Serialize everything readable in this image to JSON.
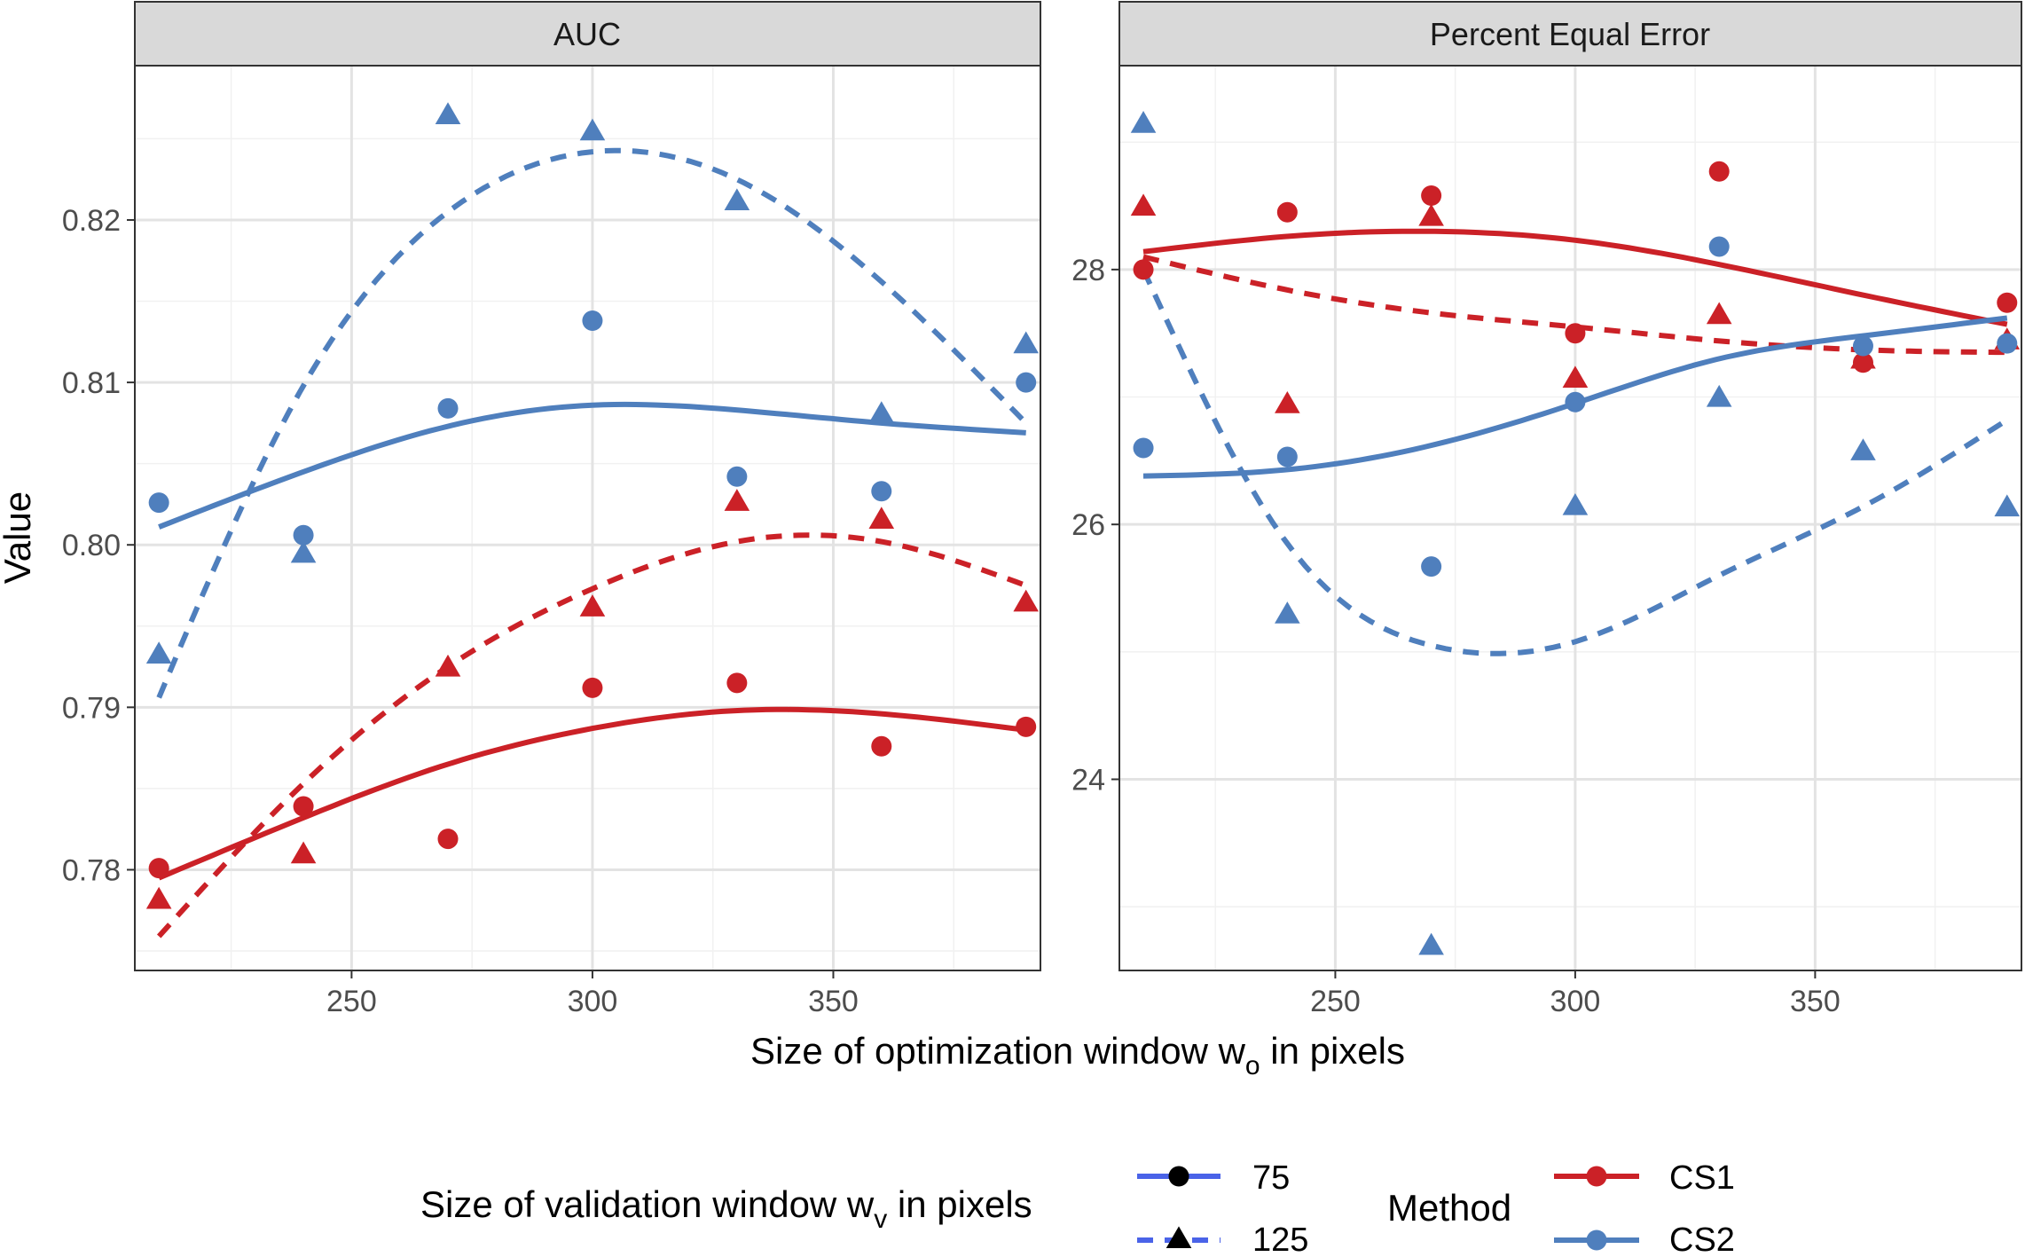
{
  "colors": {
    "CS1": "#CB2127",
    "CS2": "#4F7FBD",
    "legend_line_75": "#4A63E8",
    "strip_bg": "#D9D9D9",
    "grid_major": "#E3E3E3",
    "grid_minor": "#F1F1F1",
    "frame": "#333333",
    "text": "#4D4D4D"
  },
  "ylabel": "Value",
  "xlabel_main": "Size of optimization window  w",
  "xlabel_sub": "o",
  "xlabel_tail": "  in pixels",
  "legend": {
    "wv_title_main": "Size of validation window  w",
    "wv_title_sub": "v",
    "wv_title_tail": "  in pixels",
    "wv_items": [
      {
        "label": "75",
        "shape": "circle",
        "linetype": "solid"
      },
      {
        "label": "125",
        "shape": "triangle",
        "linetype": "dashed"
      }
    ],
    "method_title": "Method",
    "method_items": [
      {
        "label": "CS1",
        "color": "#CB2127"
      },
      {
        "label": "CS2",
        "color": "#4F7FBD"
      }
    ]
  },
  "chart_data": [
    {
      "type": "scatter",
      "title": "AUC",
      "xlim": [
        205,
        393
      ],
      "ylim": [
        0.7738,
        0.8295
      ],
      "xticks": [
        250,
        300,
        350
      ],
      "xticklabels": [
        "250",
        "300",
        "350"
      ],
      "yticks": [
        0.78,
        0.79,
        0.8,
        0.81,
        0.82
      ],
      "yticklabels": [
        "0.78",
        "0.79",
        "0.80",
        "0.81",
        "0.82"
      ],
      "xminor": [
        225,
        275,
        325,
        375
      ],
      "yminor": [
        0.775,
        0.785,
        0.795,
        0.805,
        0.815,
        0.825
      ],
      "points": [
        {
          "method": "CS1",
          "wv": "75",
          "x": [
            210,
            240,
            270,
            300,
            330,
            360,
            390
          ],
          "y": [
            0.7801,
            0.7839,
            0.7819,
            0.7912,
            0.7915,
            0.7876,
            0.7888
          ]
        },
        {
          "method": "CS1",
          "wv": "125",
          "x": [
            210,
            240,
            270,
            300,
            330,
            360,
            390
          ],
          "y": [
            0.7782,
            0.781,
            0.7925,
            0.7962,
            0.8027,
            0.8016,
            0.7965
          ]
        },
        {
          "method": "CS2",
          "wv": "75",
          "x": [
            210,
            240,
            270,
            300,
            330,
            360,
            390
          ],
          "y": [
            0.8026,
            0.8006,
            0.8084,
            0.8138,
            0.8042,
            0.8033,
            0.81
          ]
        },
        {
          "method": "CS2",
          "wv": "125",
          "x": [
            210,
            240,
            270,
            300,
            330,
            360,
            390
          ],
          "y": [
            0.7933,
            0.7995,
            0.8265,
            0.8255,
            0.8212,
            0.8081,
            0.8124
          ]
        }
      ],
      "curves": [
        {
          "method": "CS1",
          "wv": "75",
          "x": [
            210,
            240,
            270,
            300,
            330,
            360,
            390
          ],
          "y": [
            0.7795,
            0.7832,
            0.7865,
            0.7887,
            0.7898,
            0.7896,
            0.7886
          ]
        },
        {
          "method": "CS1",
          "wv": "125",
          "x": [
            210,
            240,
            270,
            300,
            330,
            360,
            390
          ],
          "y": [
            0.7759,
            0.7853,
            0.7925,
            0.7973,
            0.8002,
            0.8002,
            0.7975
          ]
        },
        {
          "method": "CS2",
          "wv": "75",
          "x": [
            210,
            240,
            270,
            300,
            330,
            360,
            390
          ],
          "y": [
            0.8011,
            0.8045,
            0.8073,
            0.8086,
            0.8083,
            0.8075,
            0.8069
          ]
        },
        {
          "method": "CS2",
          "wv": "125",
          "x": [
            210,
            240,
            270,
            300,
            330,
            360,
            390
          ],
          "y": [
            0.7906,
            0.8098,
            0.8205,
            0.8242,
            0.8225,
            0.8162,
            0.8075
          ]
        }
      ]
    },
    {
      "type": "scatter",
      "title": "Percent Equal Error",
      "xlim": [
        205,
        393
      ],
      "ylim": [
        22.5,
        29.6
      ],
      "xticks": [
        250,
        300,
        350
      ],
      "xticklabels": [
        "250",
        "300",
        "350"
      ],
      "yticks": [
        24,
        26,
        28
      ],
      "yticklabels": [
        "24",
        "26",
        "28"
      ],
      "xminor": [
        225,
        275,
        325,
        375
      ],
      "yminor": [
        23,
        25,
        27,
        29
      ],
      "points": [
        {
          "method": "CS1",
          "wv": "75",
          "x": [
            210,
            240,
            270,
            300,
            330,
            360,
            390
          ],
          "y": [
            28.0,
            28.45,
            28.58,
            27.5,
            28.77,
            27.27,
            27.74
          ]
        },
        {
          "method": "CS1",
          "wv": "125",
          "x": [
            210,
            240,
            270,
            300,
            330,
            360,
            390
          ],
          "y": [
            28.5,
            26.95,
            28.42,
            27.15,
            27.65,
            27.3,
            27.45
          ]
        },
        {
          "method": "CS2",
          "wv": "75",
          "x": [
            210,
            240,
            270,
            300,
            330,
            360,
            390
          ],
          "y": [
            26.6,
            26.53,
            25.67,
            26.96,
            28.18,
            27.4,
            27.42
          ]
        },
        {
          "method": "CS2",
          "wv": "125",
          "x": [
            210,
            240,
            270,
            300,
            330,
            360,
            390
          ],
          "y": [
            29.15,
            25.3,
            22.7,
            26.15,
            27.0,
            26.58,
            26.14
          ]
        }
      ],
      "curves": [
        {
          "method": "CS1",
          "wv": "75",
          "x": [
            210,
            240,
            270,
            300,
            330,
            360,
            390
          ],
          "y": [
            28.14,
            28.26,
            28.3,
            28.23,
            28.04,
            27.8,
            27.57
          ]
        },
        {
          "method": "CS1",
          "wv": "125",
          "x": [
            210,
            240,
            270,
            300,
            330,
            360,
            390
          ],
          "y": [
            28.1,
            27.84,
            27.66,
            27.55,
            27.44,
            27.37,
            27.35
          ]
        },
        {
          "method": "CS2",
          "wv": "75",
          "x": [
            210,
            240,
            270,
            300,
            330,
            360,
            390
          ],
          "y": [
            26.38,
            26.43,
            26.62,
            26.95,
            27.3,
            27.48,
            27.62
          ]
        },
        {
          "method": "CS2",
          "wv": "125",
          "x": [
            210,
            240,
            270,
            300,
            330,
            360,
            390
          ],
          "y": [
            28.0,
            25.85,
            25.05,
            25.08,
            25.6,
            26.14,
            26.82
          ]
        }
      ]
    }
  ]
}
